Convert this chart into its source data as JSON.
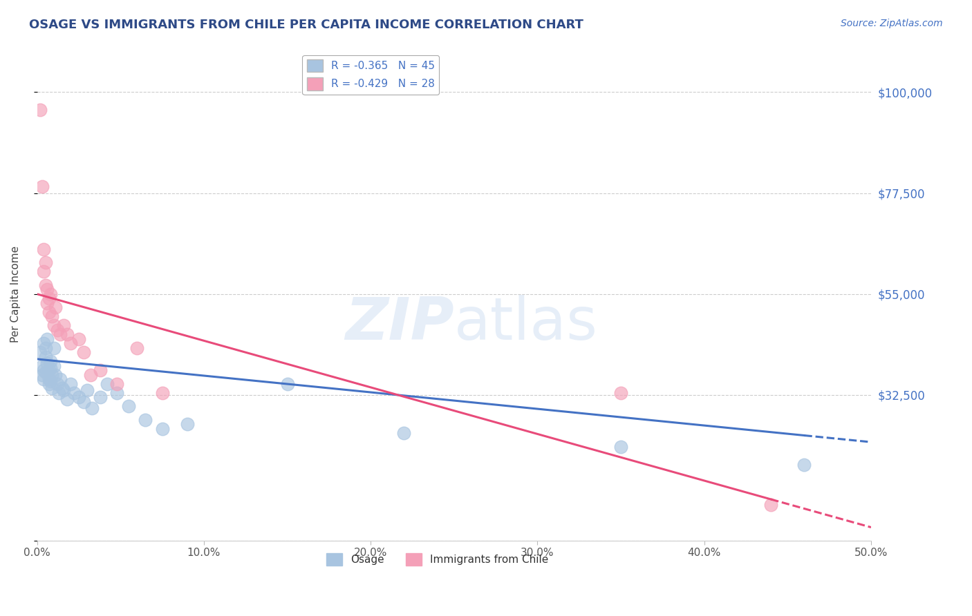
{
  "title": "OSAGE VS IMMIGRANTS FROM CHILE PER CAPITA INCOME CORRELATION CHART",
  "source": "Source: ZipAtlas.com",
  "ylabel": "Per Capita Income",
  "yticks": [
    0,
    32500,
    55000,
    77500,
    100000
  ],
  "ytick_labels": [
    "",
    "$32,500",
    "$55,000",
    "$77,500",
    "$100,000"
  ],
  "xlim": [
    0.0,
    0.5
  ],
  "ylim": [
    0,
    110000
  ],
  "xticks": [
    0.0,
    0.1,
    0.2,
    0.3,
    0.4,
    0.5
  ],
  "xtick_labels": [
    "0.0%",
    "10.0%",
    "20.0%",
    "30.0%",
    "40.0%",
    "50.0%"
  ],
  "legend_label1": "R = -0.365   N = 45",
  "legend_label2": "R = -0.429   N = 28",
  "legend_color1": "#a8c4e0",
  "legend_color2": "#f4a0b8",
  "watermark_zip": "ZIP",
  "watermark_atlas": "atlas",
  "scatter_osage_x": [
    0.002,
    0.003,
    0.003,
    0.004,
    0.004,
    0.004,
    0.005,
    0.005,
    0.005,
    0.006,
    0.006,
    0.007,
    0.007,
    0.007,
    0.008,
    0.008,
    0.008,
    0.009,
    0.009,
    0.01,
    0.01,
    0.011,
    0.012,
    0.013,
    0.014,
    0.015,
    0.016,
    0.018,
    0.02,
    0.022,
    0.025,
    0.028,
    0.03,
    0.033,
    0.038,
    0.042,
    0.048,
    0.055,
    0.065,
    0.075,
    0.09,
    0.15,
    0.22,
    0.35,
    0.46
  ],
  "scatter_osage_y": [
    42000,
    39000,
    37000,
    44000,
    38000,
    36000,
    43000,
    41000,
    37500,
    45000,
    39500,
    38000,
    36000,
    35000,
    40000,
    38500,
    35500,
    37000,
    34000,
    43000,
    39000,
    37000,
    35000,
    33000,
    36000,
    34000,
    33500,
    31500,
    35000,
    33000,
    32000,
    31000,
    33500,
    29500,
    32000,
    35000,
    33000,
    30000,
    27000,
    25000,
    26000,
    35000,
    24000,
    21000,
    17000
  ],
  "scatter_chile_x": [
    0.002,
    0.003,
    0.004,
    0.004,
    0.005,
    0.005,
    0.006,
    0.006,
    0.007,
    0.007,
    0.008,
    0.009,
    0.01,
    0.011,
    0.012,
    0.014,
    0.016,
    0.018,
    0.02,
    0.025,
    0.028,
    0.032,
    0.038,
    0.048,
    0.06,
    0.075,
    0.35,
    0.44
  ],
  "scatter_chile_y": [
    96000,
    79000,
    65000,
    60000,
    62000,
    57000,
    56000,
    53000,
    54000,
    51000,
    55000,
    50000,
    48000,
    52000,
    47000,
    46000,
    48000,
    46000,
    44000,
    45000,
    42000,
    37000,
    38000,
    35000,
    43000,
    33000,
    33000,
    8000
  ],
  "blue_line_x0": 0.0,
  "blue_line_y0": 40500,
  "blue_line_x1": 0.5,
  "blue_line_y1": 22000,
  "pink_line_x0": 0.0,
  "pink_line_y0": 55000,
  "pink_line_x1": 0.5,
  "pink_line_y1": 3000,
  "blue_line_solid_end": 0.46,
  "pink_line_solid_end": 0.44,
  "blue_line_color": "#4472c4",
  "pink_line_color": "#e84b7a",
  "blue_scatter_color": "#a8c4e0",
  "pink_scatter_color": "#f4a0b8",
  "bg_color": "#ffffff",
  "grid_color": "#cccccc",
  "title_color": "#2e4a87",
  "axis_color": "#4472c4",
  "source_color": "#4472c4"
}
